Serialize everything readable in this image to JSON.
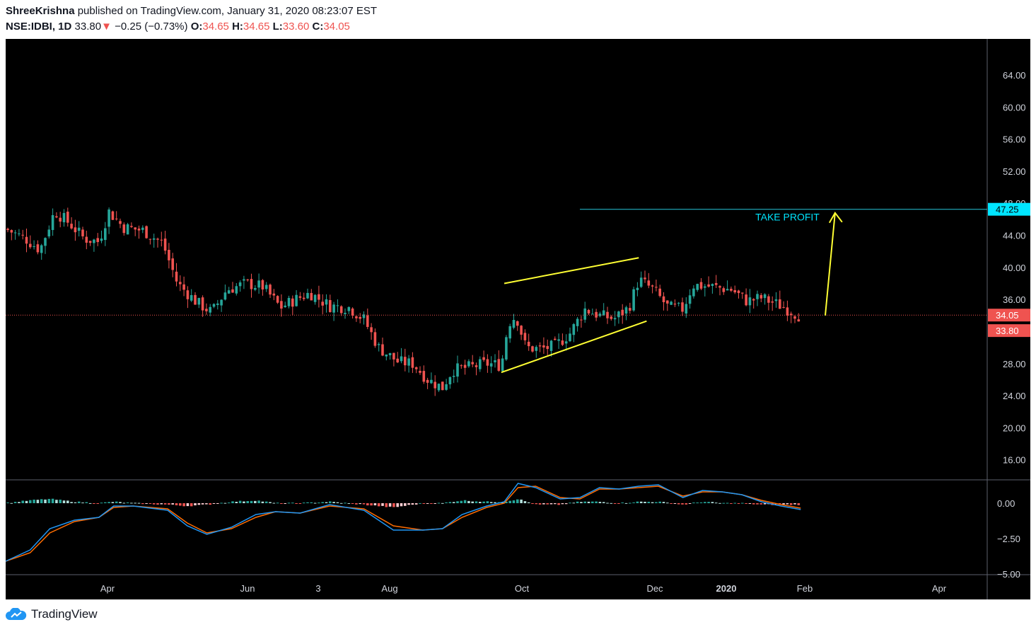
{
  "header": {
    "author": "ShreeKrishna",
    "published": "published on TradingView.com, January 31, 2020 08:23:07 EST",
    "symbol": "NSE:IDBI, 1D",
    "last": "33.80",
    "change_arrow": "▼",
    "change": "−0.25 (−0.73%)",
    "o_label": "O:",
    "o_value": "34.65",
    "h_label": "H:",
    "h_value": "34.65",
    "l_label": "L:",
    "l_value": "33.60",
    "c_label": "C:",
    "c_value": "34.05"
  },
  "footer": {
    "brand": "TradingView"
  },
  "colors": {
    "background": "#000000",
    "up": "#26a69a",
    "down": "#ef5350",
    "trendline": "#ffff33",
    "take_profit": "#00e5ff",
    "macd": "#2196f3",
    "signal": "#ff6d00"
  },
  "chart_data": [
    {
      "type": "candlestick",
      "y_ticks": [
        "64.00",
        "60.00",
        "56.00",
        "52.00",
        "48.00",
        "44.00",
        "40.00",
        "36.00",
        "28.00",
        "24.00",
        "20.00",
        "16.00"
      ],
      "ylim": [
        13.5,
        68.5
      ],
      "x_ticks": [
        "Apr",
        "Jun",
        "3",
        "Aug",
        "Oct",
        "Dec",
        "2020",
        "Feb",
        "Apr"
      ],
      "price_labels": {
        "take_profit": "47.25",
        "close": "34.05",
        "last": "33.80"
      },
      "annotations": {
        "take_profit_text": "TAKE PROFIT"
      },
      "take_profit_level": 47.25,
      "close_level": 34.05,
      "channel_upper": [
        [
          0.508,
          38.0
        ],
        [
          0.645,
          41.2
        ]
      ],
      "channel_lower": [
        [
          0.505,
          26.9
        ],
        [
          0.653,
          33.3
        ]
      ],
      "arrow": {
        "from": [
          0.835,
          34.0
        ],
        "to": [
          0.845,
          46.8
        ]
      },
      "take_profit_line_start": 0.585,
      "path": [
        [
          0.0,
          44.8
        ],
        [
          0.02,
          43.6
        ],
        [
          0.035,
          42.2
        ],
        [
          0.05,
          47.0
        ],
        [
          0.065,
          45.5
        ],
        [
          0.08,
          43.6
        ],
        [
          0.095,
          43.2
        ],
        [
          0.105,
          47.0
        ],
        [
          0.12,
          45.0
        ],
        [
          0.14,
          44.6
        ],
        [
          0.16,
          43.0
        ],
        [
          0.175,
          38.0
        ],
        [
          0.195,
          35.6
        ],
        [
          0.21,
          34.4
        ],
        [
          0.225,
          37.2
        ],
        [
          0.245,
          38.0
        ],
        [
          0.262,
          37.6
        ],
        [
          0.28,
          35.0
        ],
        [
          0.295,
          36.0
        ],
        [
          0.31,
          36.8
        ],
        [
          0.33,
          35.2
        ],
        [
          0.35,
          35.0
        ],
        [
          0.365,
          33.5
        ],
        [
          0.38,
          30.0
        ],
        [
          0.4,
          28.2
        ],
        [
          0.415,
          28.0
        ],
        [
          0.43,
          26.0
        ],
        [
          0.445,
          25.0
        ],
        [
          0.455,
          27.2
        ],
        [
          0.47,
          27.5
        ],
        [
          0.49,
          28.0
        ],
        [
          0.505,
          27.8
        ],
        [
          0.512,
          33.0
        ],
        [
          0.52,
          34.0
        ],
        [
          0.53,
          30.0
        ],
        [
          0.545,
          29.8
        ],
        [
          0.56,
          30.2
        ],
        [
          0.575,
          31.8
        ],
        [
          0.59,
          34.8
        ],
        [
          0.605,
          34.0
        ],
        [
          0.62,
          33.6
        ],
        [
          0.635,
          35.0
        ],
        [
          0.645,
          38.5
        ],
        [
          0.66,
          37.2
        ],
        [
          0.675,
          35.0
        ],
        [
          0.69,
          34.8
        ],
        [
          0.7,
          37.8
        ],
        [
          0.72,
          37.6
        ],
        [
          0.74,
          37.2
        ],
        [
          0.755,
          35.8
        ],
        [
          0.77,
          36.2
        ],
        [
          0.79,
          35.2
        ],
        [
          0.81,
          33.9
        ]
      ]
    },
    {
      "type": "macd",
      "y_ticks": [
        "0.00",
        "−2.50",
        "−5.00"
      ],
      "ylim": [
        -5.0,
        1.6
      ],
      "macd": [
        [
          0.0,
          -4.1
        ],
        [
          0.025,
          -3.3
        ],
        [
          0.045,
          -1.8
        ],
        [
          0.07,
          -1.2
        ],
        [
          0.095,
          -1.0
        ],
        [
          0.11,
          -0.2
        ],
        [
          0.13,
          -0.2
        ],
        [
          0.165,
          -0.5
        ],
        [
          0.185,
          -1.6
        ],
        [
          0.205,
          -2.2
        ],
        [
          0.23,
          -1.7
        ],
        [
          0.255,
          -0.8
        ],
        [
          0.275,
          -0.6
        ],
        [
          0.3,
          -0.7
        ],
        [
          0.33,
          -0.1
        ],
        [
          0.365,
          -0.5
        ],
        [
          0.395,
          -1.9
        ],
        [
          0.425,
          -1.9
        ],
        [
          0.445,
          -1.8
        ],
        [
          0.465,
          -0.8
        ],
        [
          0.49,
          -0.2
        ],
        [
          0.508,
          0.1
        ],
        [
          0.522,
          1.4
        ],
        [
          0.54,
          1.1
        ],
        [
          0.565,
          0.3
        ],
        [
          0.585,
          0.4
        ],
        [
          0.605,
          1.1
        ],
        [
          0.625,
          1.0
        ],
        [
          0.645,
          1.2
        ],
        [
          0.665,
          1.3
        ],
        [
          0.69,
          0.4
        ],
        [
          0.71,
          0.9
        ],
        [
          0.73,
          0.8
        ],
        [
          0.75,
          0.6
        ],
        [
          0.77,
          0.1
        ],
        [
          0.79,
          -0.2
        ],
        [
          0.81,
          -0.45
        ]
      ],
      "signal": [
        [
          0.0,
          -4.1
        ],
        [
          0.025,
          -3.5
        ],
        [
          0.045,
          -2.1
        ],
        [
          0.07,
          -1.3
        ],
        [
          0.095,
          -1.0
        ],
        [
          0.11,
          -0.3
        ],
        [
          0.13,
          -0.2
        ],
        [
          0.165,
          -0.4
        ],
        [
          0.185,
          -1.4
        ],
        [
          0.205,
          -2.1
        ],
        [
          0.23,
          -1.8
        ],
        [
          0.255,
          -1.0
        ],
        [
          0.275,
          -0.6
        ],
        [
          0.3,
          -0.7
        ],
        [
          0.33,
          -0.2
        ],
        [
          0.365,
          -0.4
        ],
        [
          0.395,
          -1.6
        ],
        [
          0.425,
          -1.9
        ],
        [
          0.445,
          -1.8
        ],
        [
          0.465,
          -1.0
        ],
        [
          0.49,
          -0.3
        ],
        [
          0.508,
          0.0
        ],
        [
          0.522,
          1.1
        ],
        [
          0.54,
          1.2
        ],
        [
          0.565,
          0.4
        ],
        [
          0.585,
          0.3
        ],
        [
          0.605,
          1.0
        ],
        [
          0.625,
          1.0
        ],
        [
          0.645,
          1.1
        ],
        [
          0.665,
          1.2
        ],
        [
          0.69,
          0.5
        ],
        [
          0.71,
          0.8
        ],
        [
          0.73,
          0.8
        ],
        [
          0.75,
          0.6
        ],
        [
          0.77,
          0.2
        ],
        [
          0.79,
          -0.1
        ],
        [
          0.81,
          -0.35
        ]
      ]
    }
  ]
}
